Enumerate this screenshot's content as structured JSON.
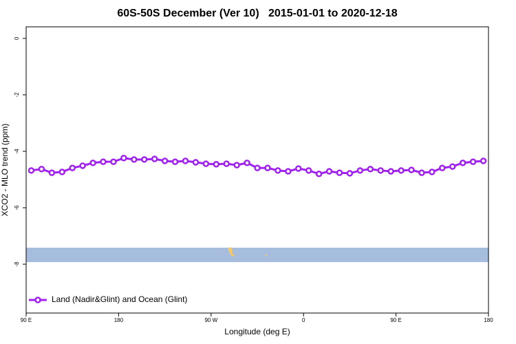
{
  "chart_data": {
    "type": "line",
    "title": "60S-50S December (Ver 10)   2015-01-01 to 2020-12-18",
    "x_label": "Longitude (deg E)",
    "y_label": "XCO2 - MLO trend (ppm)",
    "xlim": [
      90,
      540
    ],
    "ylim": [
      -9.73,
      0.41
    ],
    "xticks": [
      {
        "value": 90,
        "label": "90 E"
      },
      {
        "value": 180,
        "label": "180"
      },
      {
        "value": 270,
        "label": "90 W"
      },
      {
        "value": 360,
        "label": "0"
      },
      {
        "value": 450,
        "label": "90 E"
      },
      {
        "value": 540,
        "label": "180"
      }
    ],
    "yticks": [
      0,
      -2,
      -4,
      -6,
      -8
    ],
    "legend": "bottomleft",
    "x": [
      95,
      105,
      115,
      125,
      135,
      145,
      155,
      165,
      175,
      185,
      195,
      205,
      215,
      225,
      235,
      245,
      255,
      265,
      275,
      285,
      295,
      305,
      315,
      325,
      335,
      345,
      355,
      365,
      375,
      385,
      395,
      405,
      415,
      425,
      435,
      445,
      455,
      465,
      475,
      485,
      495,
      505,
      515,
      525,
      535
    ],
    "series": [
      {
        "name": "Land (Nadir&Glint) and Ocean (Glint)",
        "color": "#a020f0",
        "values": [
          -4.68,
          -4.63,
          -4.76,
          -4.73,
          -4.59,
          -4.51,
          -4.41,
          -4.37,
          -4.37,
          -4.24,
          -4.29,
          -4.29,
          -4.27,
          -4.34,
          -4.37,
          -4.34,
          -4.39,
          -4.44,
          -4.46,
          -4.44,
          -4.49,
          -4.41,
          -4.59,
          -4.59,
          -4.68,
          -4.71,
          -4.61,
          -4.68,
          -4.8,
          -4.71,
          -4.76,
          -4.78,
          -4.68,
          -4.63,
          -4.68,
          -4.71,
          -4.68,
          -4.66,
          -4.76,
          -4.73,
          -4.59,
          -4.54,
          -4.41,
          -4.37,
          -4.34
        ]
      }
    ]
  }
}
